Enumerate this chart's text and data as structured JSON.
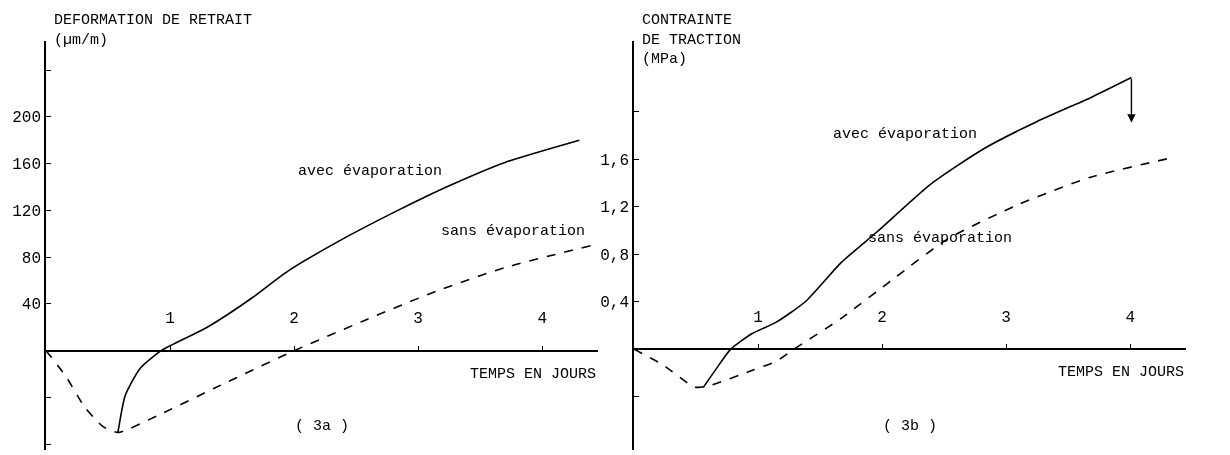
{
  "chart_data": [
    {
      "type": "line",
      "title": "( 3a )",
      "xlabel": "TEMPS EN JOURS",
      "ylabel": "DEFORMATION DE RETRAIT\n(µm/m)",
      "xlim": [
        0,
        4.45
      ],
      "xticks": [
        1,
        2,
        3,
        4
      ],
      "ylim": [
        -85,
        265
      ],
      "yticks": [
        {
          "value": -80,
          "label": null
        },
        {
          "value": -40,
          "label": null
        },
        40,
        80,
        120,
        160,
        200,
        {
          "value": 240,
          "label": null
        }
      ],
      "series": [
        {
          "name": "avec évaporation",
          "color": "#000000",
          "line_style": "solid",
          "x": [
            0.58,
            0.64,
            0.76,
            0.93,
            1.3,
            1.66,
            1.95,
            2.35,
            2.8,
            3.25,
            3.7,
            4.3
          ],
          "values": [
            -70,
            -38,
            -15,
            0,
            20,
            45,
            68,
            93,
            118,
            141,
            161,
            180
          ]
        },
        {
          "name": "sans évaporation",
          "color": "#000000",
          "line_style": "dashed",
          "x": [
            0,
            0.16,
            0.31,
            0.46,
            0.58,
            0.91,
            1.36,
            1.96,
            2.55,
            3.15,
            3.7,
            4.4
          ],
          "values": [
            0,
            -22,
            -48,
            -65,
            -70,
            -55,
            -32,
            -2,
            25,
            51,
            71,
            90
          ]
        }
      ]
    },
    {
      "type": "line",
      "title": "( 3b )",
      "xlabel": "TEMPS EN JOURS",
      "ylabel": "CONTRAINTE\nDE TRACTION\n(MPa)",
      "xlim": [
        0,
        4.45
      ],
      "xticks": [
        1,
        2,
        3,
        4
      ],
      "ylim": [
        -0.85,
        2.6
      ],
      "yticks": [
        {
          "value": -0.4,
          "label": null
        },
        {
          "value": 0.4,
          "label": "0,4"
        },
        {
          "value": 0.8,
          "label": "0,8"
        },
        {
          "value": 1.2,
          "label": "1,2"
        },
        {
          "value": 1.6,
          "label": "1,6"
        },
        {
          "value": 2.0,
          "label": null
        }
      ],
      "series": [
        {
          "name": "avec évaporation",
          "color": "#000000",
          "line_style": "solid",
          "x": [
            0.56,
            0.66,
            0.78,
            0.95,
            1.15,
            1.38,
            1.67,
            1.96,
            2.39,
            2.82,
            3.25,
            3.68,
            4.01
          ],
          "values": [
            -0.32,
            -0.17,
            0,
            0.13,
            0.23,
            0.4,
            0.73,
            0.99,
            1.39,
            1.69,
            1.92,
            2.12,
            2.29
          ]
        },
        {
          "name": "sans évaporation",
          "color": "#000000",
          "line_style": "dashed",
          "x": [
            0,
            0.23,
            0.49,
            0.6,
            0.95,
            1.15,
            1.29,
            1.67,
            2.1,
            2.53,
            3.1,
            3.68,
            4.32
          ],
          "values": [
            0,
            -0.13,
            -0.32,
            -0.31,
            -0.18,
            -0.1,
            0,
            0.26,
            0.6,
            0.93,
            1.22,
            1.45,
            1.61
          ]
        }
      ]
    }
  ]
}
